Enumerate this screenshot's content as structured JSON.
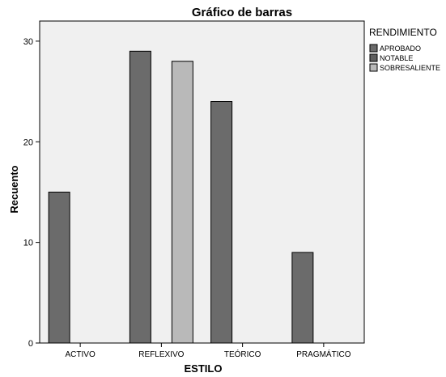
{
  "chart_data": {
    "type": "bar",
    "title": "Gráfico de barras",
    "xlabel": "ESTILO",
    "ylabel": "Recuento",
    "categories": [
      "ACTIVO",
      "REFLEXIVO",
      "TEÓRICO",
      "PRAGMÁTICO"
    ],
    "series": [
      {
        "name": "APROBADO",
        "values": [
          15,
          29,
          24,
          9
        ],
        "color": "#6b6b6b"
      },
      {
        "name": "NOTABLE",
        "values": [
          0,
          0,
          0,
          0
        ],
        "color": "#5e5e5e"
      },
      {
        "name": "SOBRESALIENTE",
        "values": [
          0,
          28,
          0,
          0
        ],
        "color": "#b9b9b9"
      }
    ],
    "legend_title": "RENDIMIENTO",
    "legend_position": "top-right",
    "ylim": [
      0,
      32
    ],
    "yticks": [
      0,
      10,
      20,
      30
    ],
    "grid": false,
    "plot_background": "#f0f0f0"
  }
}
